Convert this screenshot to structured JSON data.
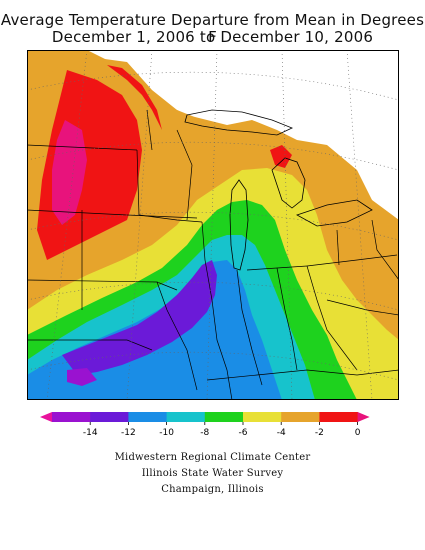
{
  "title": {
    "line1": "Average Temperature Departure from Mean in Degrees F",
    "line2": "December 1, 2006 to December 10, 2006"
  },
  "legend": {
    "colors": [
      "#e8139c",
      "#9a12d0",
      "#6b1ad8",
      "#1a8de6",
      "#17c3cc",
      "#1ed21e",
      "#e8e036",
      "#e6a42c",
      "#f01414",
      "#e8137c"
    ],
    "ticks": [
      "-14",
      "-12",
      "-10",
      "-8",
      "-6",
      "-4",
      "-2",
      "0"
    ]
  },
  "credits": [
    "Midwestern Regional Climate Center",
    "Illinois State Water Survey",
    "Champaign, Illinois"
  ]
}
